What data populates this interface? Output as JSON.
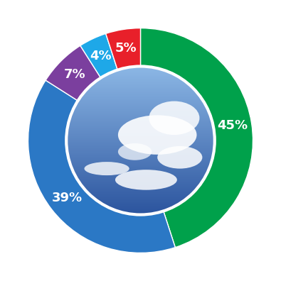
{
  "chart_data": {
    "type": "pie",
    "values": [
      45,
      39,
      7,
      4,
      5
    ],
    "value_labels": [
      "45%",
      "39%",
      "7%",
      "4%",
      "5%"
    ],
    "colors": [
      "#00a14b",
      "#2b78c5",
      "#7b3f9e",
      "#1ea8e8",
      "#e8202a"
    ],
    "data_labels": true
  }
}
